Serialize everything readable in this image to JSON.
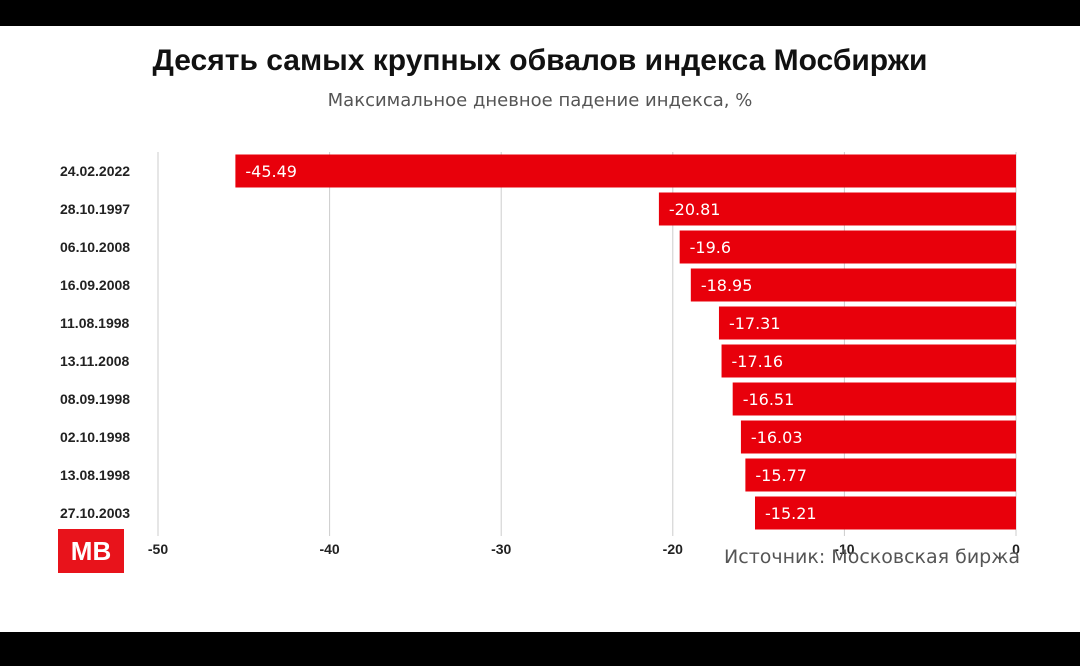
{
  "header": {
    "title": "Десять самых крупных обвалов индекса Мосбиржи",
    "subtitle": "Максимальное дневное падение индекса, %"
  },
  "footer": {
    "logo_text": "MB",
    "source": "Источник: Московская биржа"
  },
  "colors": {
    "bar": "#e8000b",
    "logo_bg": "#e8131b",
    "grid": "#cccccc"
  },
  "chart_data": {
    "type": "bar",
    "orientation": "horizontal",
    "title": "Десять самых крупных обвалов индекса Мосбиржи",
    "subtitle": "Максимальное дневное падение индекса, %",
    "categories": [
      "24.02.2022",
      "28.10.1997",
      "06.10.2008",
      "16.09.2008",
      "11.08.1998",
      "13.11.2008",
      "08.09.1998",
      "02.10.1998",
      "13.08.1998",
      "27.10.2003"
    ],
    "values": [
      -45.49,
      -20.81,
      -19.6,
      -18.95,
      -17.31,
      -17.16,
      -16.51,
      -16.03,
      -15.77,
      -15.21
    ],
    "value_labels": [
      "-45.49",
      "-20.81",
      "-19.6",
      "-18.95",
      "-17.31",
      "-17.16",
      "-16.51",
      "-16.03",
      "-15.77",
      "-15.21"
    ],
    "xlim": [
      -50,
      0
    ],
    "xticks": [
      -50,
      -40,
      -30,
      -20,
      -10,
      0
    ],
    "xtick_labels": [
      "-50",
      "-40",
      "-30",
      "-20",
      "-10",
      "0"
    ],
    "grid": true,
    "legend": "none"
  }
}
